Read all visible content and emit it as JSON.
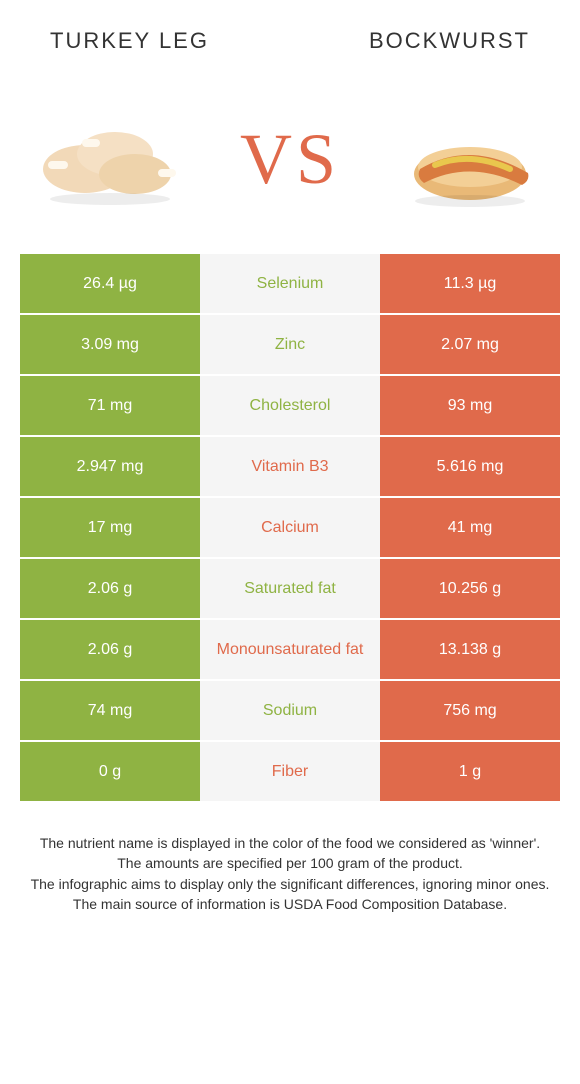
{
  "left_food": {
    "name": "TURKEY LEG"
  },
  "right_food": {
    "name": "BOCKWURST"
  },
  "vs": "VS",
  "colors": {
    "left": "#8fb343",
    "right": "#e06a4b",
    "mid_bg": "#f5f5f5",
    "text": "#333333"
  },
  "rows": [
    {
      "left": "26.4 µg",
      "label": "Selenium",
      "right": "11.3 µg",
      "winner": "left"
    },
    {
      "left": "3.09 mg",
      "label": "Zinc",
      "right": "2.07 mg",
      "winner": "left"
    },
    {
      "left": "71 mg",
      "label": "Cholesterol",
      "right": "93 mg",
      "winner": "left"
    },
    {
      "left": "2.947 mg",
      "label": "Vitamin B3",
      "right": "5.616 mg",
      "winner": "right"
    },
    {
      "left": "17 mg",
      "label": "Calcium",
      "right": "41 mg",
      "winner": "right"
    },
    {
      "left": "2.06 g",
      "label": "Saturated fat",
      "right": "10.256 g",
      "winner": "left"
    },
    {
      "left": "2.06 g",
      "label": "Monounsaturated fat",
      "right": "13.138 g",
      "winner": "right"
    },
    {
      "left": "74 mg",
      "label": "Sodium",
      "right": "756 mg",
      "winner": "left"
    },
    {
      "left": "0 g",
      "label": "Fiber",
      "right": "1 g",
      "winner": "right"
    }
  ],
  "footer": [
    "The nutrient name is displayed in the color of the food we considered as 'winner'.",
    "The amounts are specified per 100 gram of the product.",
    "The infographic aims to display only the significant differences, ignoring minor ones.",
    "The main source of information is USDA Food Composition Database."
  ]
}
